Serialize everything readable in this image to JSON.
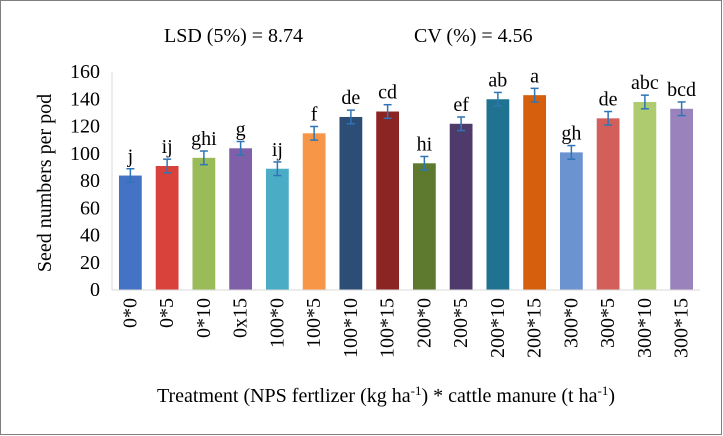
{
  "chart_data": {
    "type": "bar",
    "stats": {
      "lsd": "LSD (5%) = 8.74",
      "cv": "CV (%) = 4.56"
    },
    "ylabel": "Seed numbers per pod",
    "xlabel": {
      "main": "Treatment (NPS fertlizer (kg ha",
      "sup1": "-1",
      "mid": ") * cattle manure (t ha",
      "sup2": "-1",
      "end": ")"
    },
    "ylim": [
      0,
      160
    ],
    "yticks": [
      0,
      20,
      40,
      60,
      80,
      100,
      120,
      140,
      160
    ],
    "grid": false,
    "legend": "none",
    "categories": [
      "0*0",
      "0*5",
      "0*10",
      "0x15",
      "100*0",
      "100*5",
      "100*10",
      "100*15",
      "200*0",
      "200*5",
      "200*10",
      "200*15",
      "300*0",
      "300*5",
      "300*10",
      "300*15"
    ],
    "values": [
      84,
      91,
      97,
      104,
      89,
      115,
      127,
      131,
      93,
      122,
      140,
      143,
      101,
      126,
      138,
      133
    ],
    "errors": [
      5,
      5,
      5,
      5,
      5,
      5,
      5,
      5,
      5,
      5,
      5,
      5,
      5,
      5,
      5,
      5
    ],
    "significance": [
      "j",
      "ij",
      "ghi",
      "g",
      "ij",
      "f",
      "de",
      "cd",
      "hi",
      "ef",
      "ab",
      "a",
      "gh",
      "de",
      "abc",
      "bcd"
    ],
    "colors": [
      "#4472C4",
      "#D9413B",
      "#9BBB59",
      "#7F5FA8",
      "#4BACC6",
      "#F79646",
      "#2C4D75",
      "#8B2523",
      "#5E7A2E",
      "#4F3B6B",
      "#1F7391",
      "#D65F0E",
      "#6B93D0",
      "#D35F5B",
      "#AECB6F",
      "#9A83BC"
    ],
    "error_bar_color": "#2E75B6"
  }
}
